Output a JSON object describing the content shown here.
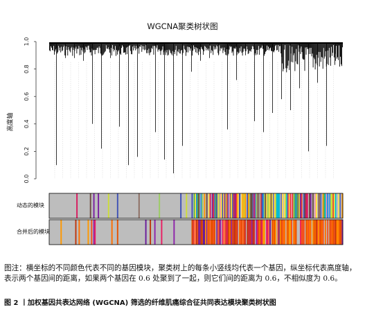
{
  "figure": {
    "title": "WGCNA聚类树状图",
    "y_axis_title": "高度轴",
    "y_ticks": [
      "0.0",
      "0.2",
      "0.4",
      "0.6",
      "0.8",
      "1.0"
    ],
    "row_labels": [
      "动态的模块",
      "合并后的模块"
    ]
  },
  "chart_data": {
    "type": "dendrogram",
    "title": "WGCNA聚类树状图",
    "ylabel": "高度轴",
    "ylim": [
      0,
      1
    ],
    "y_ticks": [
      0.0,
      0.2,
      0.4,
      0.6,
      0.8,
      1.0
    ],
    "merge_top_height": 0.99,
    "long_branch_min_heights": [
      0.1,
      0.88,
      0.88,
      0.86,
      0.4,
      0.22,
      0.88,
      0.38,
      0.1,
      0.16,
      0.92,
      0.34,
      0.14,
      0.04,
      0.24,
      0.78,
      0.86,
      0.88,
      0.9,
      0.36,
      0.72,
      0.9,
      0.42,
      0.34,
      0.48,
      0.58,
      0.5,
      0.66,
      0.2,
      0.7,
      0.24,
      0.86
    ],
    "color_rows": [
      "动态的模块",
      "合并后的模块"
    ]
  },
  "caption": {
    "note": "图注：横坐标的不同颜色代表不同的基因模块，聚类树上的每条小竖线均代表一个基因，纵坐标代表高度轴，表示两个基因间的距离，如果两个基因在 0.6 处聚到了一起，则它们间的距离为 0.6，不相似度为 0.6。",
    "figure_title": "图 2 丨加权基因共表达网络 (WGCNA) 筛选的纤维肌痛综合征共同表达模块聚类树状图"
  },
  "palette": {
    "grey": "#bdbdbd",
    "module_colors": [
      "#7b1fa2",
      "#ffeb3b",
      "#3f51b5",
      "#4caf50",
      "#e53935",
      "#8d6e63",
      "#ff9800",
      "#00bcd4",
      "#f48fb1",
      "#cddc39",
      "#1e88e5",
      "#6d4c41",
      "#9ccc65",
      "#ffd54f",
      "#5c6bc0",
      "#d81b60"
    ],
    "merged_colors": [
      "#ff6f00",
      "#e65100",
      "#ff9800",
      "#f4511e",
      "#bf360c",
      "#6a1b9a",
      "#e91e63",
      "#d32f2f",
      "#8e24aa",
      "#ff7043"
    ]
  }
}
